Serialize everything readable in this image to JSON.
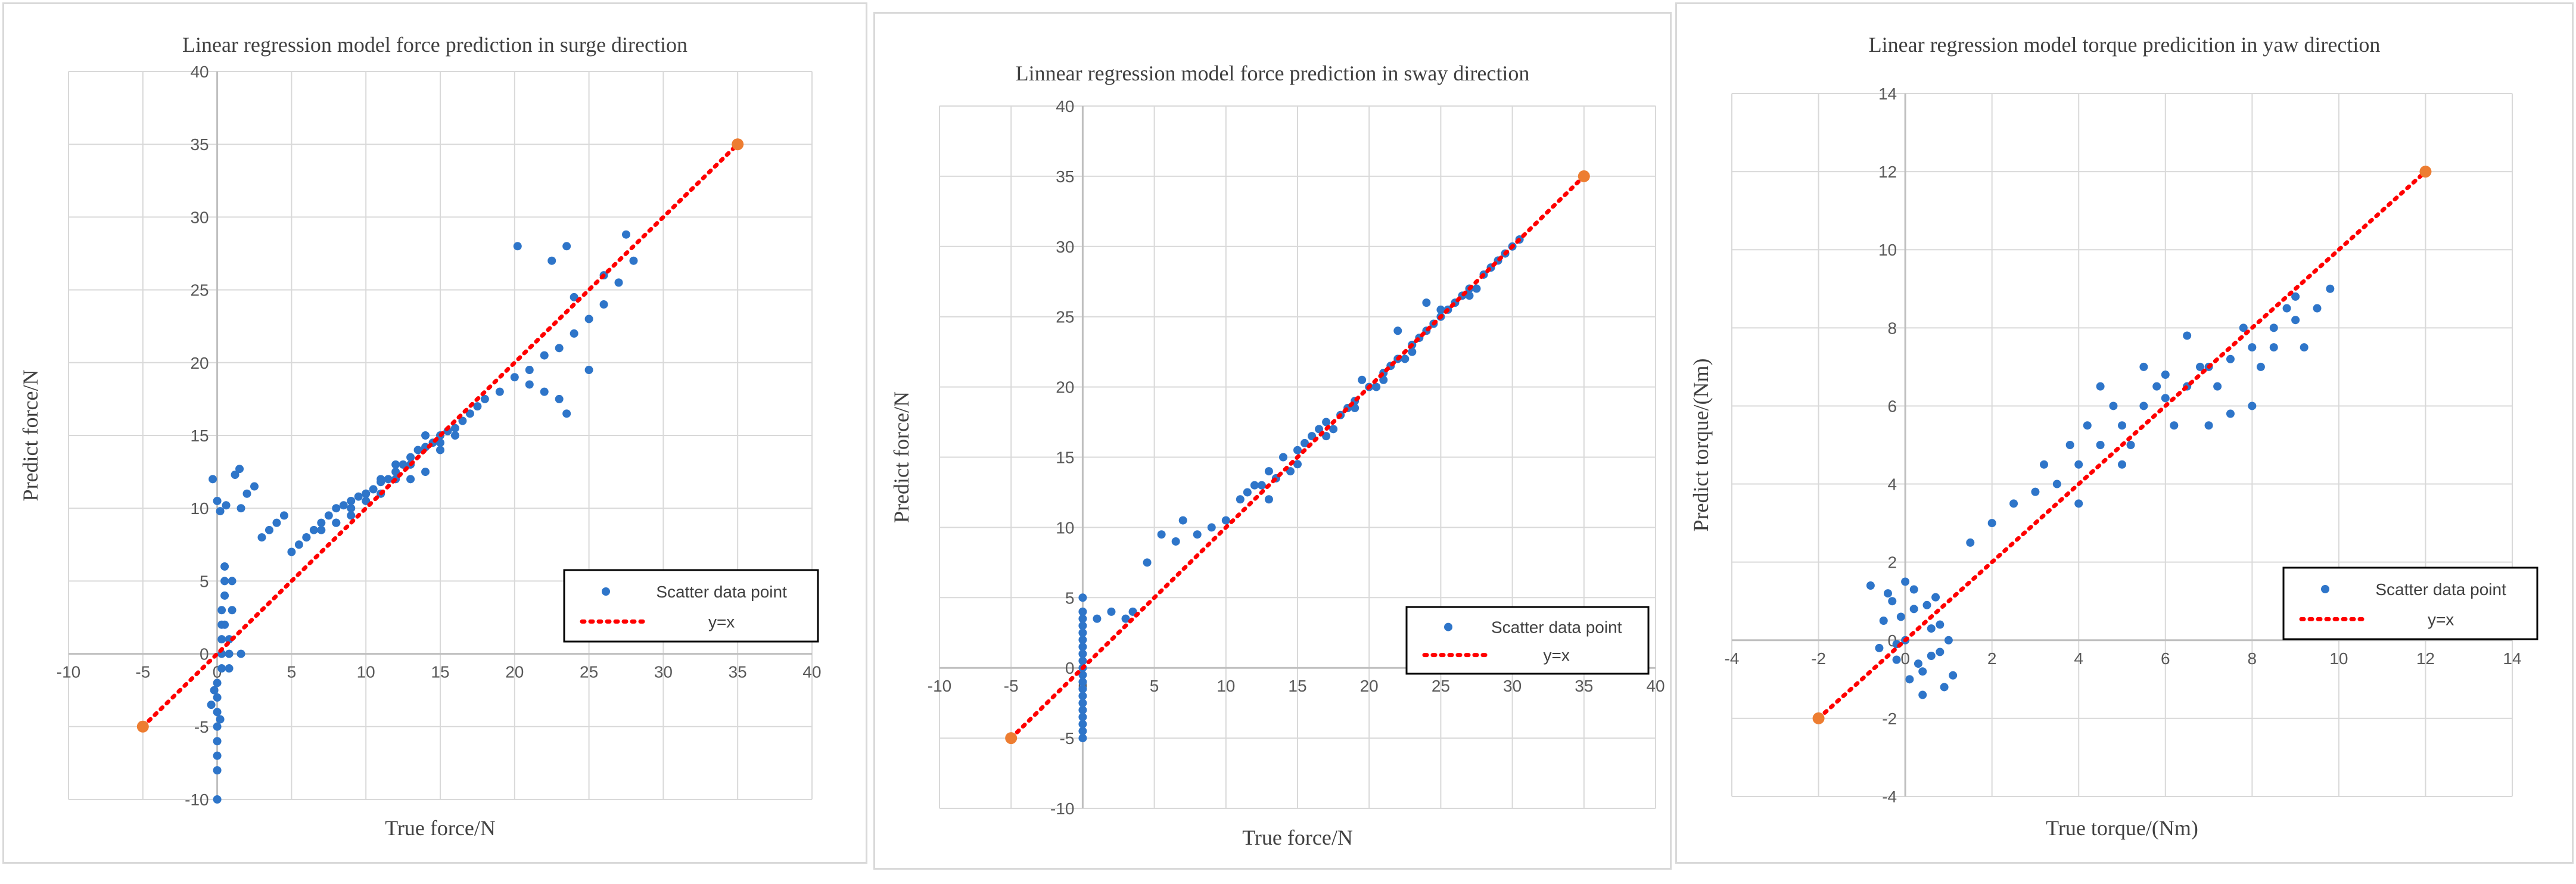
{
  "chart_data": [
    {
      "type": "scatter",
      "title": "Linear regression model force prediction in surge direction",
      "xlabel": "True force/N",
      "ylabel": "Predict force/N",
      "xlim": [
        -10,
        40
      ],
      "ylim": [
        -10,
        40
      ],
      "xticks": [
        -10,
        -5,
        0,
        5,
        10,
        15,
        20,
        25,
        30,
        35,
        40
      ],
      "yticks": [
        -10,
        -5,
        0,
        5,
        10,
        15,
        20,
        25,
        30,
        35,
        40
      ],
      "grid": true,
      "legend_position": "bottom-right",
      "series": [
        {
          "name": "Scatter data point",
          "kind": "scatter",
          "color": "#2e75c9",
          "x": [
            0.0,
            0.0,
            0.0,
            0.0,
            0.0,
            0.0,
            0.0,
            0.0,
            0.3,
            0.3,
            0.3,
            0.3,
            0.3,
            0.5,
            0.5,
            0.5,
            0.5,
            0.8,
            0.8,
            0.8,
            1.0,
            1.0,
            0.2,
            -0.4,
            -0.2,
            -0.3,
            0.2,
            0.6,
            1.5,
            1.2,
            1.6,
            1.6,
            0.0,
            2.0,
            2.5,
            3.0,
            3.5,
            4.0,
            4.5,
            5.0,
            5.5,
            6.0,
            6.5,
            7.0,
            7.5,
            8.0,
            8.5,
            9.0,
            9.5,
            10.0,
            10.5,
            11.0,
            11.5,
            12.0,
            12.5,
            13.0,
            13.5,
            14.0,
            14.5,
            15.0,
            15.5,
            16.0,
            16.5,
            17.0,
            17.5,
            18.0,
            19.0,
            20.0,
            21.0,
            22.0,
            23.0,
            24.0,
            25.0,
            26.0,
            27.0,
            28.0,
            12.0,
            13.0,
            14.0,
            15.0,
            16.0,
            8.0,
            9.0,
            10.0,
            11.0,
            12.0,
            13.0,
            14.0,
            15.0,
            6.0,
            7.0,
            8.0,
            9.0,
            10.0,
            11.0,
            20.2,
            21.0,
            22.0,
            23.0,
            23.5,
            24.0,
            25.0,
            27.5,
            26.0,
            22.5,
            23.5
          ],
          "y": [
            -10.0,
            -8.0,
            -7.0,
            -6.0,
            -5.0,
            -4.0,
            -3.0,
            -2.0,
            -1.0,
            0.0,
            1.0,
            2.0,
            3.0,
            4.0,
            5.0,
            6.0,
            2.0,
            -1.0,
            0.0,
            1.0,
            3.0,
            5.0,
            -4.5,
            -3.5,
            -2.5,
            12.0,
            9.8,
            10.2,
            12.7,
            12.3,
            0.0,
            10.0,
            10.5,
            11.0,
            11.5,
            8.0,
            8.5,
            9.0,
            9.5,
            7.0,
            7.5,
            8.0,
            8.5,
            9.0,
            9.5,
            10.0,
            10.2,
            10.5,
            10.8,
            11.0,
            11.3,
            11.8,
            12.0,
            12.5,
            13.0,
            13.5,
            14.0,
            14.2,
            14.5,
            15.0,
            15.3,
            15.5,
            16.0,
            16.5,
            17.0,
            17.5,
            18.0,
            19.0,
            19.5,
            20.5,
            21.0,
            22.0,
            23.0,
            24.0,
            25.5,
            27.0,
            12.0,
            13.0,
            12.5,
            14.0,
            15.0,
            9.0,
            9.5,
            10.5,
            11.0,
            13.0,
            12.0,
            15.0,
            14.5,
            8.0,
            8.5,
            9.0,
            10.0,
            11.0,
            12.0,
            28.0,
            18.5,
            18.0,
            17.5,
            16.5,
            24.5,
            19.5,
            28.8,
            26.0,
            27.0,
            28.0
          ]
        },
        {
          "name": "y=x",
          "kind": "line",
          "style": "dotted",
          "color": "#ff0000",
          "endpoint_color": "#ed7d31",
          "x": [
            -5,
            35
          ],
          "y": [
            -5,
            35
          ]
        }
      ]
    },
    {
      "type": "scatter",
      "title": "Linnear regression model force prediction in sway direction",
      "xlabel": "True force/N",
      "ylabel": "Predict force/N",
      "xlim": [
        -10,
        40
      ],
      "ylim": [
        -10,
        40
      ],
      "xticks": [
        -10,
        -5,
        0,
        5,
        10,
        15,
        20,
        25,
        30,
        35,
        40
      ],
      "yticks": [
        -10,
        -5,
        0,
        5,
        10,
        15,
        20,
        25,
        30,
        35,
        40
      ],
      "grid": true,
      "legend_position": "bottom-right",
      "series": [
        {
          "name": "Scatter data point",
          "kind": "scatter",
          "color": "#2e75c9",
          "x": [
            0.0,
            0.0,
            0.0,
            0.0,
            0.0,
            0.0,
            0.0,
            0.0,
            0.0,
            0.0,
            0.0,
            0.0,
            0.0,
            0.0,
            0.0,
            0.0,
            0.0,
            0.0,
            0.0,
            0.0,
            1.0,
            2.0,
            3.0,
            3.5,
            4.5,
            5.5,
            6.5,
            7.0,
            8.0,
            9.0,
            10.0,
            11.0,
            12.0,
            13.0,
            14.0,
            15.0,
            16.0,
            17.0,
            18.0,
            19.0,
            20.0,
            21.0,
            22.0,
            23.0,
            24.0,
            25.0,
            26.0,
            27.0,
            28.0,
            29.0,
            30.0,
            30.5,
            11.5,
            12.5,
            13.5,
            14.5,
            15.5,
            16.5,
            17.5,
            18.5,
            19.5,
            20.5,
            21.5,
            22.5,
            23.5,
            24.5,
            25.5,
            26.5,
            27.5,
            28.5,
            29.5,
            13.0,
            15.0,
            17.0,
            19.0,
            21.0,
            23.0,
            25.0,
            27.0,
            24.0,
            22.0
          ],
          "y": [
            -5.0,
            -4.5,
            -4.0,
            -3.5,
            -3.0,
            -2.5,
            -2.0,
            -1.5,
            -1.0,
            -0.5,
            0.0,
            0.5,
            1.0,
            1.5,
            2.0,
            2.5,
            3.0,
            3.5,
            4.0,
            5.0,
            3.5,
            4.0,
            3.5,
            4.0,
            7.5,
            9.5,
            9.0,
            10.5,
            9.5,
            10.0,
            10.5,
            12.0,
            13.0,
            14.0,
            15.0,
            15.5,
            16.5,
            17.5,
            18.0,
            19.0,
            20.0,
            21.0,
            22.0,
            23.0,
            24.0,
            25.0,
            26.0,
            27.0,
            28.0,
            29.0,
            30.0,
            30.5,
            12.5,
            13.0,
            13.5,
            14.0,
            16.0,
            17.0,
            17.0,
            18.5,
            20.5,
            20.0,
            21.5,
            22.0,
            23.5,
            24.5,
            25.5,
            26.5,
            27.0,
            28.5,
            29.5,
            12.0,
            14.5,
            16.5,
            18.5,
            20.5,
            22.5,
            25.5,
            26.5,
            26.0,
            24.0
          ]
        },
        {
          "name": "y=x",
          "kind": "line",
          "style": "dotted",
          "color": "#ff0000",
          "endpoint_color": "#ed7d31",
          "x": [
            -5,
            35
          ],
          "y": [
            -5,
            35
          ]
        }
      ]
    },
    {
      "type": "scatter",
      "title": "Linear regression model torque predicition in yaw direction",
      "xlabel": "True torque/(Nm)",
      "ylabel": "Predict torque/(Nm)",
      "xlim": [
        -4,
        14
      ],
      "ylim": [
        -4,
        14
      ],
      "xticks": [
        -4,
        -2,
        0,
        2,
        4,
        6,
        8,
        10,
        12,
        14
      ],
      "yticks": [
        -4,
        -2,
        0,
        2,
        4,
        6,
        8,
        10,
        12,
        14
      ],
      "grid": true,
      "legend_position": "bottom-right",
      "series": [
        {
          "name": "Scatter data point",
          "kind": "scatter",
          "color": "#2e75c9",
          "x": [
            -0.5,
            -0.3,
            -0.2,
            0.0,
            0.2,
            0.4,
            0.6,
            0.8,
            -0.4,
            0.1,
            0.5,
            0.9,
            -0.1,
            0.3,
            0.7,
            1.0,
            -0.6,
            0.0,
            0.4,
            0.8,
            1.1,
            0.2,
            -0.2,
            0.6,
            -0.8,
            1.5,
            2.0,
            2.5,
            3.0,
            3.5,
            4.0,
            4.5,
            5.0,
            5.5,
            6.0,
            6.5,
            7.0,
            7.5,
            8.0,
            8.5,
            9.0,
            9.5,
            3.2,
            3.8,
            4.2,
            4.8,
            5.2,
            5.8,
            6.2,
            6.8,
            7.2,
            7.8,
            8.2,
            8.8,
            9.2,
            4.0,
            5.0,
            6.0,
            7.0,
            8.0,
            9.0,
            6.5,
            7.5,
            8.5,
            5.5,
            4.5,
            9.8
          ],
          "y": [
            0.5,
            1.0,
            -0.5,
            0.0,
            0.8,
            -0.8,
            0.3,
            -0.3,
            1.2,
            -1.0,
            0.9,
            -1.2,
            0.6,
            -0.6,
            1.1,
            0.0,
            -0.2,
            1.5,
            -1.4,
            0.4,
            -0.9,
            1.3,
            -0.1,
            -0.4,
            1.4,
            2.5,
            3.0,
            3.5,
            3.8,
            4.0,
            4.5,
            5.0,
            5.5,
            6.0,
            6.2,
            6.5,
            7.0,
            7.2,
            7.5,
            8.0,
            8.2,
            8.5,
            4.5,
            5.0,
            5.5,
            6.0,
            5.0,
            6.5,
            5.5,
            7.0,
            6.5,
            8.0,
            7.0,
            8.5,
            7.5,
            3.5,
            4.5,
            6.8,
            5.5,
            6.0,
            8.8,
            7.8,
            5.8,
            7.5,
            7.0,
            6.5,
            9.0
          ]
        },
        {
          "name": "y=x",
          "kind": "line",
          "style": "dotted",
          "color": "#ff0000",
          "endpoint_color": "#ed7d31",
          "x": [
            -2,
            12
          ],
          "y": [
            -2,
            12
          ]
        }
      ]
    }
  ]
}
